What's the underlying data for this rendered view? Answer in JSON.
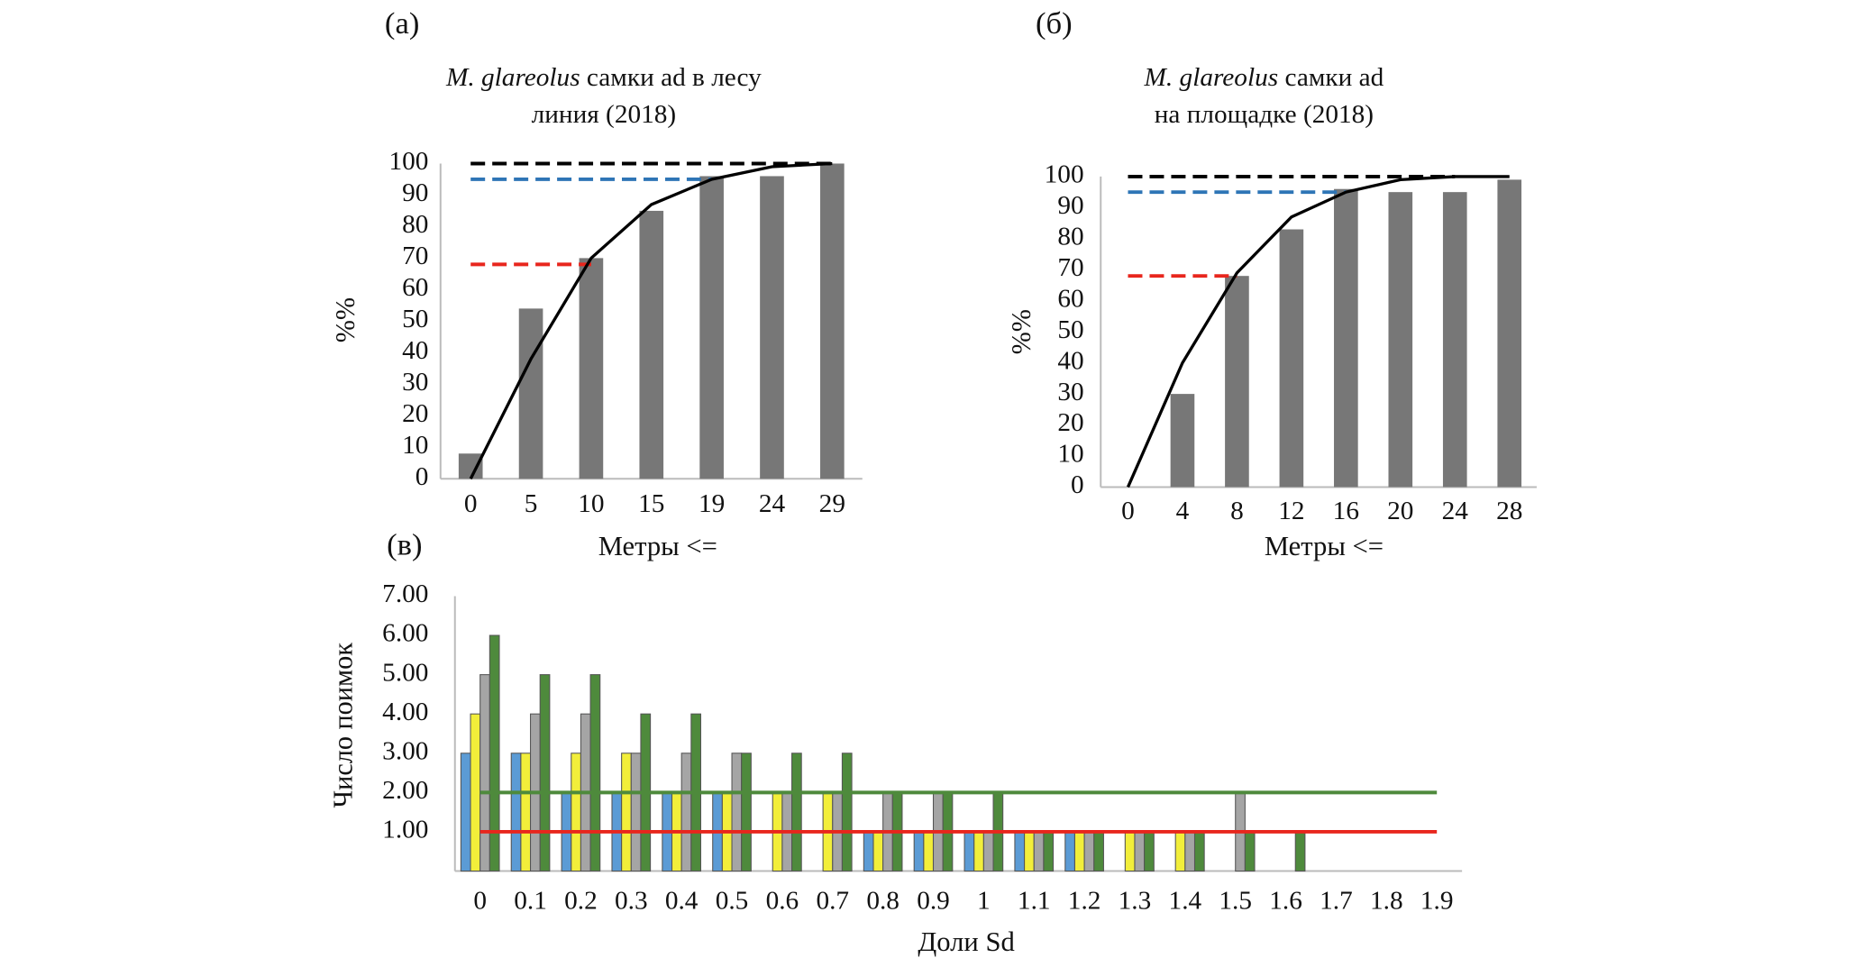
{
  "chart_data": [
    {
      "type": "bar",
      "label": "(а)",
      "title_lines": [
        [
          {
            "text": "M. glareolus",
            "italic": true
          },
          {
            "text": " самки ad в лесу"
          }
        ],
        [
          {
            "text": "линия (2018)"
          }
        ]
      ],
      "xlabel": "Метры <=",
      "ylabel": "%%",
      "categories": [
        "0",
        "5",
        "10",
        "15",
        "19",
        "24",
        "29"
      ],
      "series": [
        {
          "type": "bar",
          "color": "#777777",
          "values": [
            8,
            54,
            70,
            85,
            96,
            96,
            100
          ]
        },
        {
          "type": "line",
          "color": "#000000",
          "values": [
            0,
            38,
            70,
            87,
            95,
            99,
            100
          ]
        }
      ],
      "hlines": [
        {
          "value": 100,
          "color": "#000000"
        },
        {
          "value": 95,
          "color": "#2e75b6"
        },
        {
          "value": 68,
          "color": "#e8261d"
        }
      ],
      "dashed_hlines": true,
      "ylim": [
        0,
        100
      ],
      "yticks": [
        0,
        10,
        20,
        30,
        40,
        50,
        60,
        70,
        80,
        90,
        100
      ],
      "grid": false
    },
    {
      "type": "bar",
      "label": "(б)",
      "title_lines": [
        [
          {
            "text": "M. glareolus",
            "italic": true
          },
          {
            "text": " самки ad"
          }
        ],
        [
          {
            "text": "на площадке (2018)"
          }
        ]
      ],
      "xlabel": "Метры <=",
      "ylabel": "%%",
      "categories": [
        "0",
        "4",
        "8",
        "12",
        "16",
        "20",
        "24",
        "28"
      ],
      "series": [
        {
          "type": "bar",
          "color": "#777777",
          "values": [
            null,
            30,
            68,
            83,
            96,
            95,
            95,
            99
          ]
        },
        {
          "type": "line",
          "color": "#000000",
          "values": [
            0,
            40,
            69,
            87,
            95,
            99,
            100,
            100
          ]
        }
      ],
      "hlines": [
        {
          "value": 100,
          "color": "#000000"
        },
        {
          "value": 95,
          "color": "#2e75b6"
        },
        {
          "value": 68,
          "color": "#e8261d"
        }
      ],
      "dashed_hlines": true,
      "ylim": [
        0,
        100
      ],
      "yticks": [
        0,
        10,
        20,
        30,
        40,
        50,
        60,
        70,
        80,
        90,
        100
      ],
      "grid": false
    },
    {
      "type": "bar",
      "label": "(в)",
      "xlabel": "Доли Sd",
      "ylabel": "Число поимок",
      "categories": [
        "0",
        "0.1",
        "0.2",
        "0.3",
        "0.4",
        "0.5",
        "0.6",
        "0.7",
        "0.8",
        "0.9",
        "1",
        "1.1",
        "1.2",
        "1.3",
        "1.4",
        "1.5",
        "1.6",
        "1.7",
        "1.8",
        "1.9"
      ],
      "series": [
        {
          "type": "bar",
          "color": "#5b9bd5",
          "values": [
            3,
            3,
            2,
            2,
            2,
            2,
            null,
            null,
            1,
            1,
            1,
            1,
            1,
            null,
            null,
            null,
            null,
            null,
            null,
            null
          ]
        },
        {
          "type": "bar",
          "color": "#f2ee3a",
          "values": [
            4,
            3,
            3,
            3,
            2,
            2,
            2,
            2,
            1,
            1,
            1,
            1,
            1,
            1,
            1,
            null,
            null,
            null,
            null,
            null
          ]
        },
        {
          "type": "bar",
          "color": "#a5a5a5",
          "values": [
            5,
            4,
            4,
            3,
            3,
            3,
            2,
            2,
            2,
            2,
            1,
            1,
            1,
            1,
            1,
            2,
            null,
            null,
            null,
            null
          ]
        },
        {
          "type": "bar",
          "color": "#4e8a3c",
          "values": [
            6,
            5,
            5,
            4,
            4,
            3,
            3,
            3,
            2,
            2,
            2,
            1,
            1,
            1,
            1,
            1,
            1,
            null,
            null,
            null
          ]
        }
      ],
      "hlines": [
        {
          "value": 2,
          "color": "#4e8a3c"
        },
        {
          "value": 1,
          "color": "#e8261d"
        }
      ],
      "dashed_hlines": false,
      "ylim": [
        0,
        7
      ],
      "yticks": [
        {
          "value": 1,
          "label": "1.00"
        },
        {
          "value": 2,
          "label": "2.00"
        },
        {
          "value": 3,
          "label": "3.00"
        },
        {
          "value": 4,
          "label": "4.00"
        },
        {
          "value": 5,
          "label": "5.00"
        },
        {
          "value": 6,
          "label": "6.00"
        },
        {
          "value": 7,
          "label": "7.00"
        }
      ],
      "grid": false
    }
  ]
}
